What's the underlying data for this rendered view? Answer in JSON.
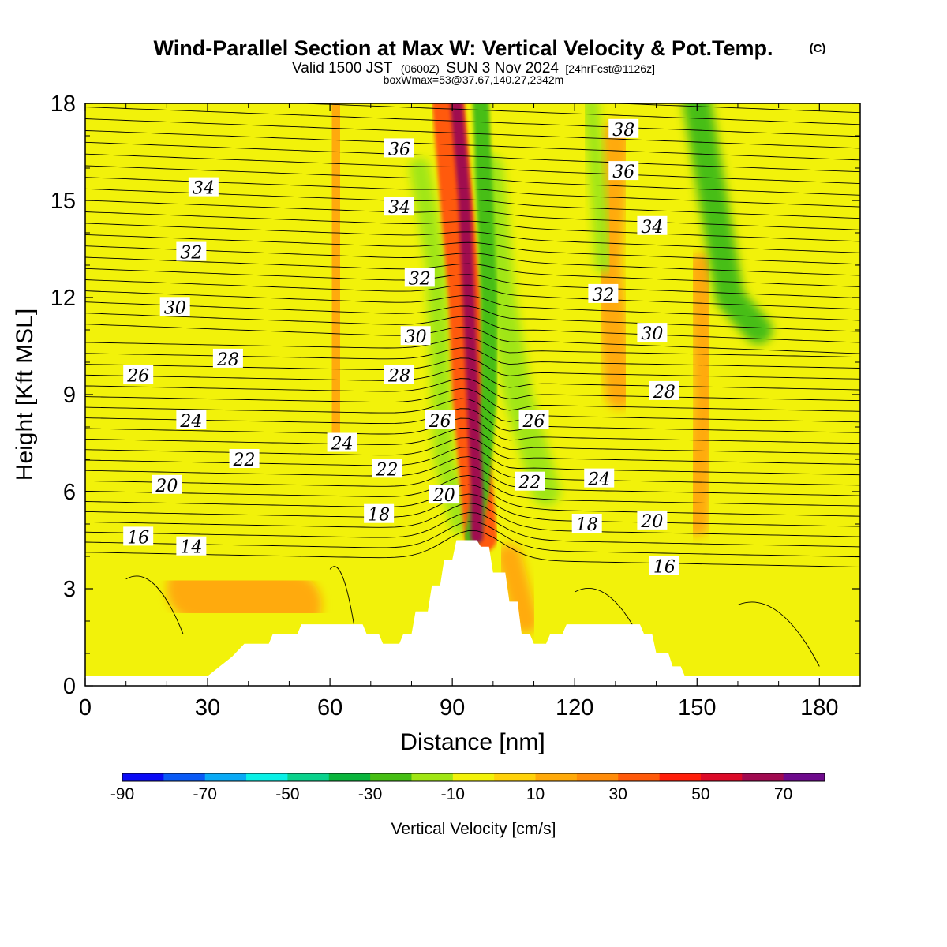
{
  "title": {
    "main": "Wind-Parallel Section at Max W: Vertical Velocity & Pot.Temp.",
    "tag": "(C)",
    "valid_prefix": "Valid 1500 JST",
    "valid_z": "(0600Z)",
    "valid_day": "SUN 3 Nov 2024",
    "valid_fcst": "[24hrFcst@1126z]",
    "box": "boxWmax=53@37.67,140.27,2342m"
  },
  "colors": {
    "background": "#ffffff",
    "plot_base": "#f2f20a",
    "terrain": "#ffffff",
    "contour_line": "#000000"
  },
  "chart_data": {
    "type": "heatmap",
    "xlabel": "Distance [nm]",
    "ylabel": "Height [Kft MSL]",
    "xlim": [
      0,
      190
    ],
    "ylim": [
      0,
      18
    ],
    "x_ticks": [
      0,
      30,
      60,
      90,
      120,
      150,
      180
    ],
    "x_tick_labels": [
      "0",
      "30",
      "60",
      "90",
      "120",
      "150",
      "180"
    ],
    "y_ticks": [
      0,
      3,
      6,
      9,
      12,
      15,
      18
    ],
    "y_tick_labels": [
      "0",
      "3",
      "6",
      "9",
      "12",
      "15",
      "18"
    ],
    "colorbar": {
      "title": "Vertical Velocity [cm/s]",
      "min": -90,
      "max": 80,
      "step": 10,
      "tick_values": [
        -90,
        -70,
        -50,
        -30,
        -10,
        10,
        30,
        50,
        70
      ],
      "tick_labels": [
        "-90",
        "-70",
        "-50",
        "-30",
        "-10",
        "10",
        "30",
        "50",
        "70"
      ],
      "colors": [
        "#0a0af5",
        "#0a5af5",
        "#0aaaf5",
        "#0af0e6",
        "#0ad28c",
        "#0ab43c",
        "#46be14",
        "#a0e614",
        "#f2f20a",
        "#ffd20a",
        "#ffaa0a",
        "#ff8c0a",
        "#ff5a0a",
        "#ff1e0a",
        "#dc0a28",
        "#a00a50",
        "#6e0a8c"
      ]
    },
    "terrain_profile": [
      [
        0,
        0.3
      ],
      [
        30,
        0.3
      ],
      [
        33,
        0.6
      ],
      [
        36,
        0.9
      ],
      [
        39,
        1.3
      ],
      [
        45,
        1.3
      ],
      [
        46,
        1.6
      ],
      [
        52,
        1.6
      ],
      [
        53,
        1.9
      ],
      [
        68,
        1.9
      ],
      [
        69,
        1.6
      ],
      [
        72,
        1.6
      ],
      [
        73,
        1.3
      ],
      [
        77,
        1.3
      ],
      [
        78,
        1.6
      ],
      [
        80,
        1.6
      ],
      [
        81,
        2.3
      ],
      [
        84,
        2.3
      ],
      [
        85,
        3.1
      ],
      [
        87,
        3.1
      ],
      [
        88,
        3.9
      ],
      [
        90,
        3.9
      ],
      [
        91,
        4.5
      ],
      [
        96,
        4.5
      ],
      [
        97,
        4.3
      ],
      [
        99,
        4.3
      ],
      [
        100,
        3.5
      ],
      [
        103,
        3.5
      ],
      [
        104,
        2.6
      ],
      [
        106,
        2.6
      ],
      [
        107,
        1.6
      ],
      [
        109,
        1.6
      ],
      [
        110,
        1.3
      ],
      [
        113,
        1.3
      ],
      [
        114,
        1.6
      ],
      [
        117,
        1.6
      ],
      [
        118,
        1.9
      ],
      [
        136,
        1.9
      ],
      [
        137,
        1.6
      ],
      [
        139,
        1.6
      ],
      [
        140,
        1.0
      ],
      [
        143,
        1.0
      ],
      [
        144,
        0.6
      ],
      [
        146,
        0.6
      ],
      [
        147,
        0.3
      ],
      [
        190,
        0.3
      ]
    ],
    "vertical_velocity_features": [
      {
        "sign": "up",
        "value": 60,
        "path": [
          [
            91,
            18
          ],
          [
            93,
            15
          ],
          [
            94,
            12
          ],
          [
            95,
            9
          ],
          [
            96,
            6
          ],
          [
            96,
            4.6
          ]
        ],
        "width_nm": 3
      },
      {
        "sign": "up",
        "value": 30,
        "path": [
          [
            89,
            18
          ],
          [
            91,
            15
          ],
          [
            93,
            12
          ],
          [
            94,
            9
          ],
          [
            96,
            6
          ],
          [
            97,
            4.6
          ]
        ],
        "width_nm": 8
      },
      {
        "sign": "down",
        "value": -30,
        "path": [
          [
            97,
            18
          ],
          [
            98,
            15
          ],
          [
            99,
            12
          ],
          [
            99,
            9
          ],
          [
            97,
            6
          ],
          [
            95,
            4.6
          ]
        ],
        "width_nm": 4
      },
      {
        "sign": "down",
        "value": -15,
        "path": [
          [
            82,
            16
          ],
          [
            86,
            13
          ],
          [
            87,
            10
          ],
          [
            88,
            7
          ],
          [
            92,
            5
          ]
        ],
        "width_nm": 5
      },
      {
        "sign": "down",
        "value": -15,
        "path": [
          [
            99,
            16
          ],
          [
            102,
            12
          ],
          [
            106,
            9
          ],
          [
            113,
            6
          ]
        ],
        "width_nm": 7
      },
      {
        "sign": "down",
        "value": -20,
        "path": [
          [
            124,
            18
          ],
          [
            126,
            15
          ],
          [
            127,
            13
          ]
        ],
        "width_nm": 4
      },
      {
        "sign": "down",
        "value": -25,
        "path": [
          [
            150,
            18
          ],
          [
            154,
            15
          ],
          [
            158,
            12
          ],
          [
            165,
            11
          ]
        ],
        "width_nm": 7
      },
      {
        "sign": "down",
        "value": -15,
        "path": [
          [
            70,
            4.2
          ],
          [
            70,
            2
          ]
        ],
        "width_nm": 6
      },
      {
        "sign": "down",
        "value": -15,
        "path": [
          [
            140,
            2.4
          ],
          [
            140,
            1.2
          ]
        ],
        "width_nm": 3
      },
      {
        "sign": "up",
        "value": 15,
        "path": [
          [
            62,
            18
          ],
          [
            62,
            13
          ],
          [
            61,
            8
          ]
        ],
        "width_nm": 8
      },
      {
        "sign": "up",
        "value": 15,
        "path": [
          [
            130,
            17
          ],
          [
            128,
            13
          ],
          [
            131,
            9
          ]
        ],
        "width_nm": 7
      },
      {
        "sign": "up",
        "value": 15,
        "path": [
          [
            151,
            13
          ],
          [
            152,
            9
          ],
          [
            150,
            5
          ]
        ],
        "width_nm": 6
      },
      {
        "sign": "up",
        "value": 15,
        "path": [
          [
            104,
            4
          ],
          [
            108,
            2
          ]
        ],
        "width_nm": 6
      },
      {
        "sign": "up",
        "value": 10,
        "path": [
          [
            28,
            3
          ],
          [
            50,
            2.5
          ]
        ],
        "width_nm": 16
      }
    ],
    "theta_contours": {
      "interval": 1,
      "labels": [
        {
          "text": "38",
          "x": 132,
          "y": 17.2
        },
        {
          "text": "36",
          "x": 77,
          "y": 16.6
        },
        {
          "text": "36",
          "x": 132,
          "y": 15.9
        },
        {
          "text": "34",
          "x": 29,
          "y": 15.4
        },
        {
          "text": "34",
          "x": 77,
          "y": 14.8
        },
        {
          "text": "34",
          "x": 139,
          "y": 14.2
        },
        {
          "text": "32",
          "x": 26,
          "y": 13.4
        },
        {
          "text": "32",
          "x": 82,
          "y": 12.6
        },
        {
          "text": "32",
          "x": 127,
          "y": 12.1
        },
        {
          "text": "30",
          "x": 22,
          "y": 11.7
        },
        {
          "text": "30",
          "x": 81,
          "y": 10.8
        },
        {
          "text": "30",
          "x": 139,
          "y": 10.9
        },
        {
          "text": "28",
          "x": 35,
          "y": 10.1
        },
        {
          "text": "28",
          "x": 77,
          "y": 9.6
        },
        {
          "text": "28",
          "x": 142,
          "y": 9.1
        },
        {
          "text": "26",
          "x": 13,
          "y": 9.6
        },
        {
          "text": "26",
          "x": 87,
          "y": 8.2
        },
        {
          "text": "26",
          "x": 110,
          "y": 8.2
        },
        {
          "text": "24",
          "x": 26,
          "y": 8.2
        },
        {
          "text": "24",
          "x": 63,
          "y": 7.5
        },
        {
          "text": "24",
          "x": 126,
          "y": 6.4
        },
        {
          "text": "22",
          "x": 39,
          "y": 7.0
        },
        {
          "text": "22",
          "x": 74,
          "y": 6.7
        },
        {
          "text": "22",
          "x": 109,
          "y": 6.3
        },
        {
          "text": "20",
          "x": 20,
          "y": 6.2
        },
        {
          "text": "20",
          "x": 88,
          "y": 5.9
        },
        {
          "text": "20",
          "x": 139,
          "y": 5.1
        },
        {
          "text": "18",
          "x": 72,
          "y": 5.3
        },
        {
          "text": "18",
          "x": 123,
          "y": 5.0
        },
        {
          "text": "16",
          "x": 13,
          "y": 4.6
        },
        {
          "text": "16",
          "x": 142,
          "y": 3.7
        },
        {
          "text": "14",
          "x": 26,
          "y": 4.3
        }
      ]
    }
  }
}
